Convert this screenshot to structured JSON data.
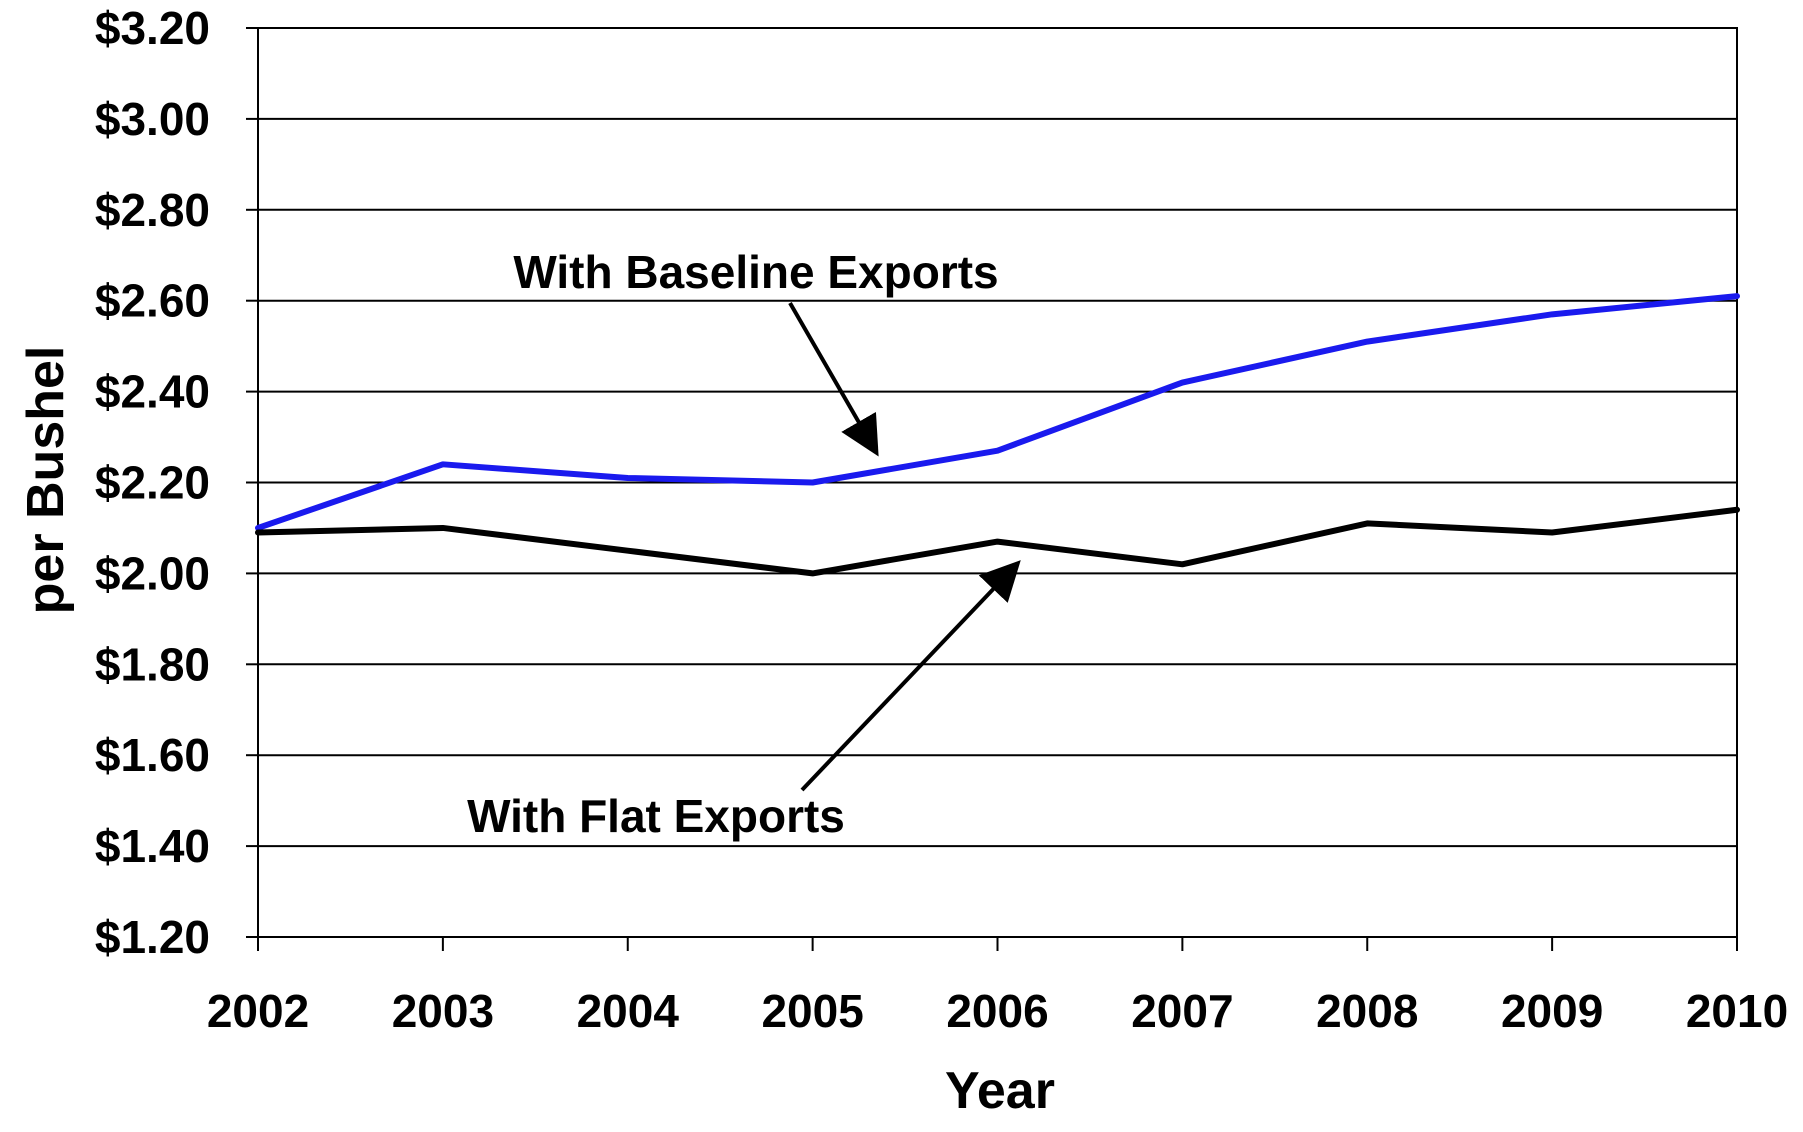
{
  "chart_data": {
    "type": "line",
    "title": "",
    "xlabel": "Year",
    "ylabel": "per Bushel",
    "categories": [
      "2002",
      "2003",
      "2004",
      "2005",
      "2006",
      "2007",
      "2008",
      "2009",
      "2010"
    ],
    "ylim": [
      1.2,
      3.2
    ],
    "y_ticks": [
      {
        "value": 1.2,
        "label": "$1.20"
      },
      {
        "value": 1.4,
        "label": "$1.40"
      },
      {
        "value": 1.6,
        "label": "$1.60"
      },
      {
        "value": 1.8,
        "label": "$1.80"
      },
      {
        "value": 2.0,
        "label": "$2.00"
      },
      {
        "value": 2.2,
        "label": "$2.20"
      },
      {
        "value": 2.4,
        "label": "$2.40"
      },
      {
        "value": 2.6,
        "label": "$2.60"
      },
      {
        "value": 2.8,
        "label": "$2.80"
      },
      {
        "value": 3.0,
        "label": "$3.00"
      },
      {
        "value": 3.2,
        "label": "$3.20"
      }
    ],
    "grid": true,
    "series": [
      {
        "name": "With Baseline Exports",
        "color": "#1a1aee",
        "values": [
          2.1,
          2.24,
          2.21,
          2.2,
          2.27,
          2.42,
          2.51,
          2.57,
          2.61
        ]
      },
      {
        "name": "With Flat Exports",
        "color": "#000000",
        "values": [
          2.09,
          2.1,
          2.05,
          2.0,
          2.07,
          2.02,
          2.11,
          2.09,
          2.14
        ]
      }
    ],
    "annotations": [
      {
        "text": "With Baseline Exports",
        "series": 0,
        "arrow_to": {
          "x": "2005",
          "y": 2.28
        }
      },
      {
        "text": "With Flat Exports",
        "series": 1,
        "arrow_to": {
          "x": "2006",
          "y": 2.01
        }
      }
    ]
  }
}
